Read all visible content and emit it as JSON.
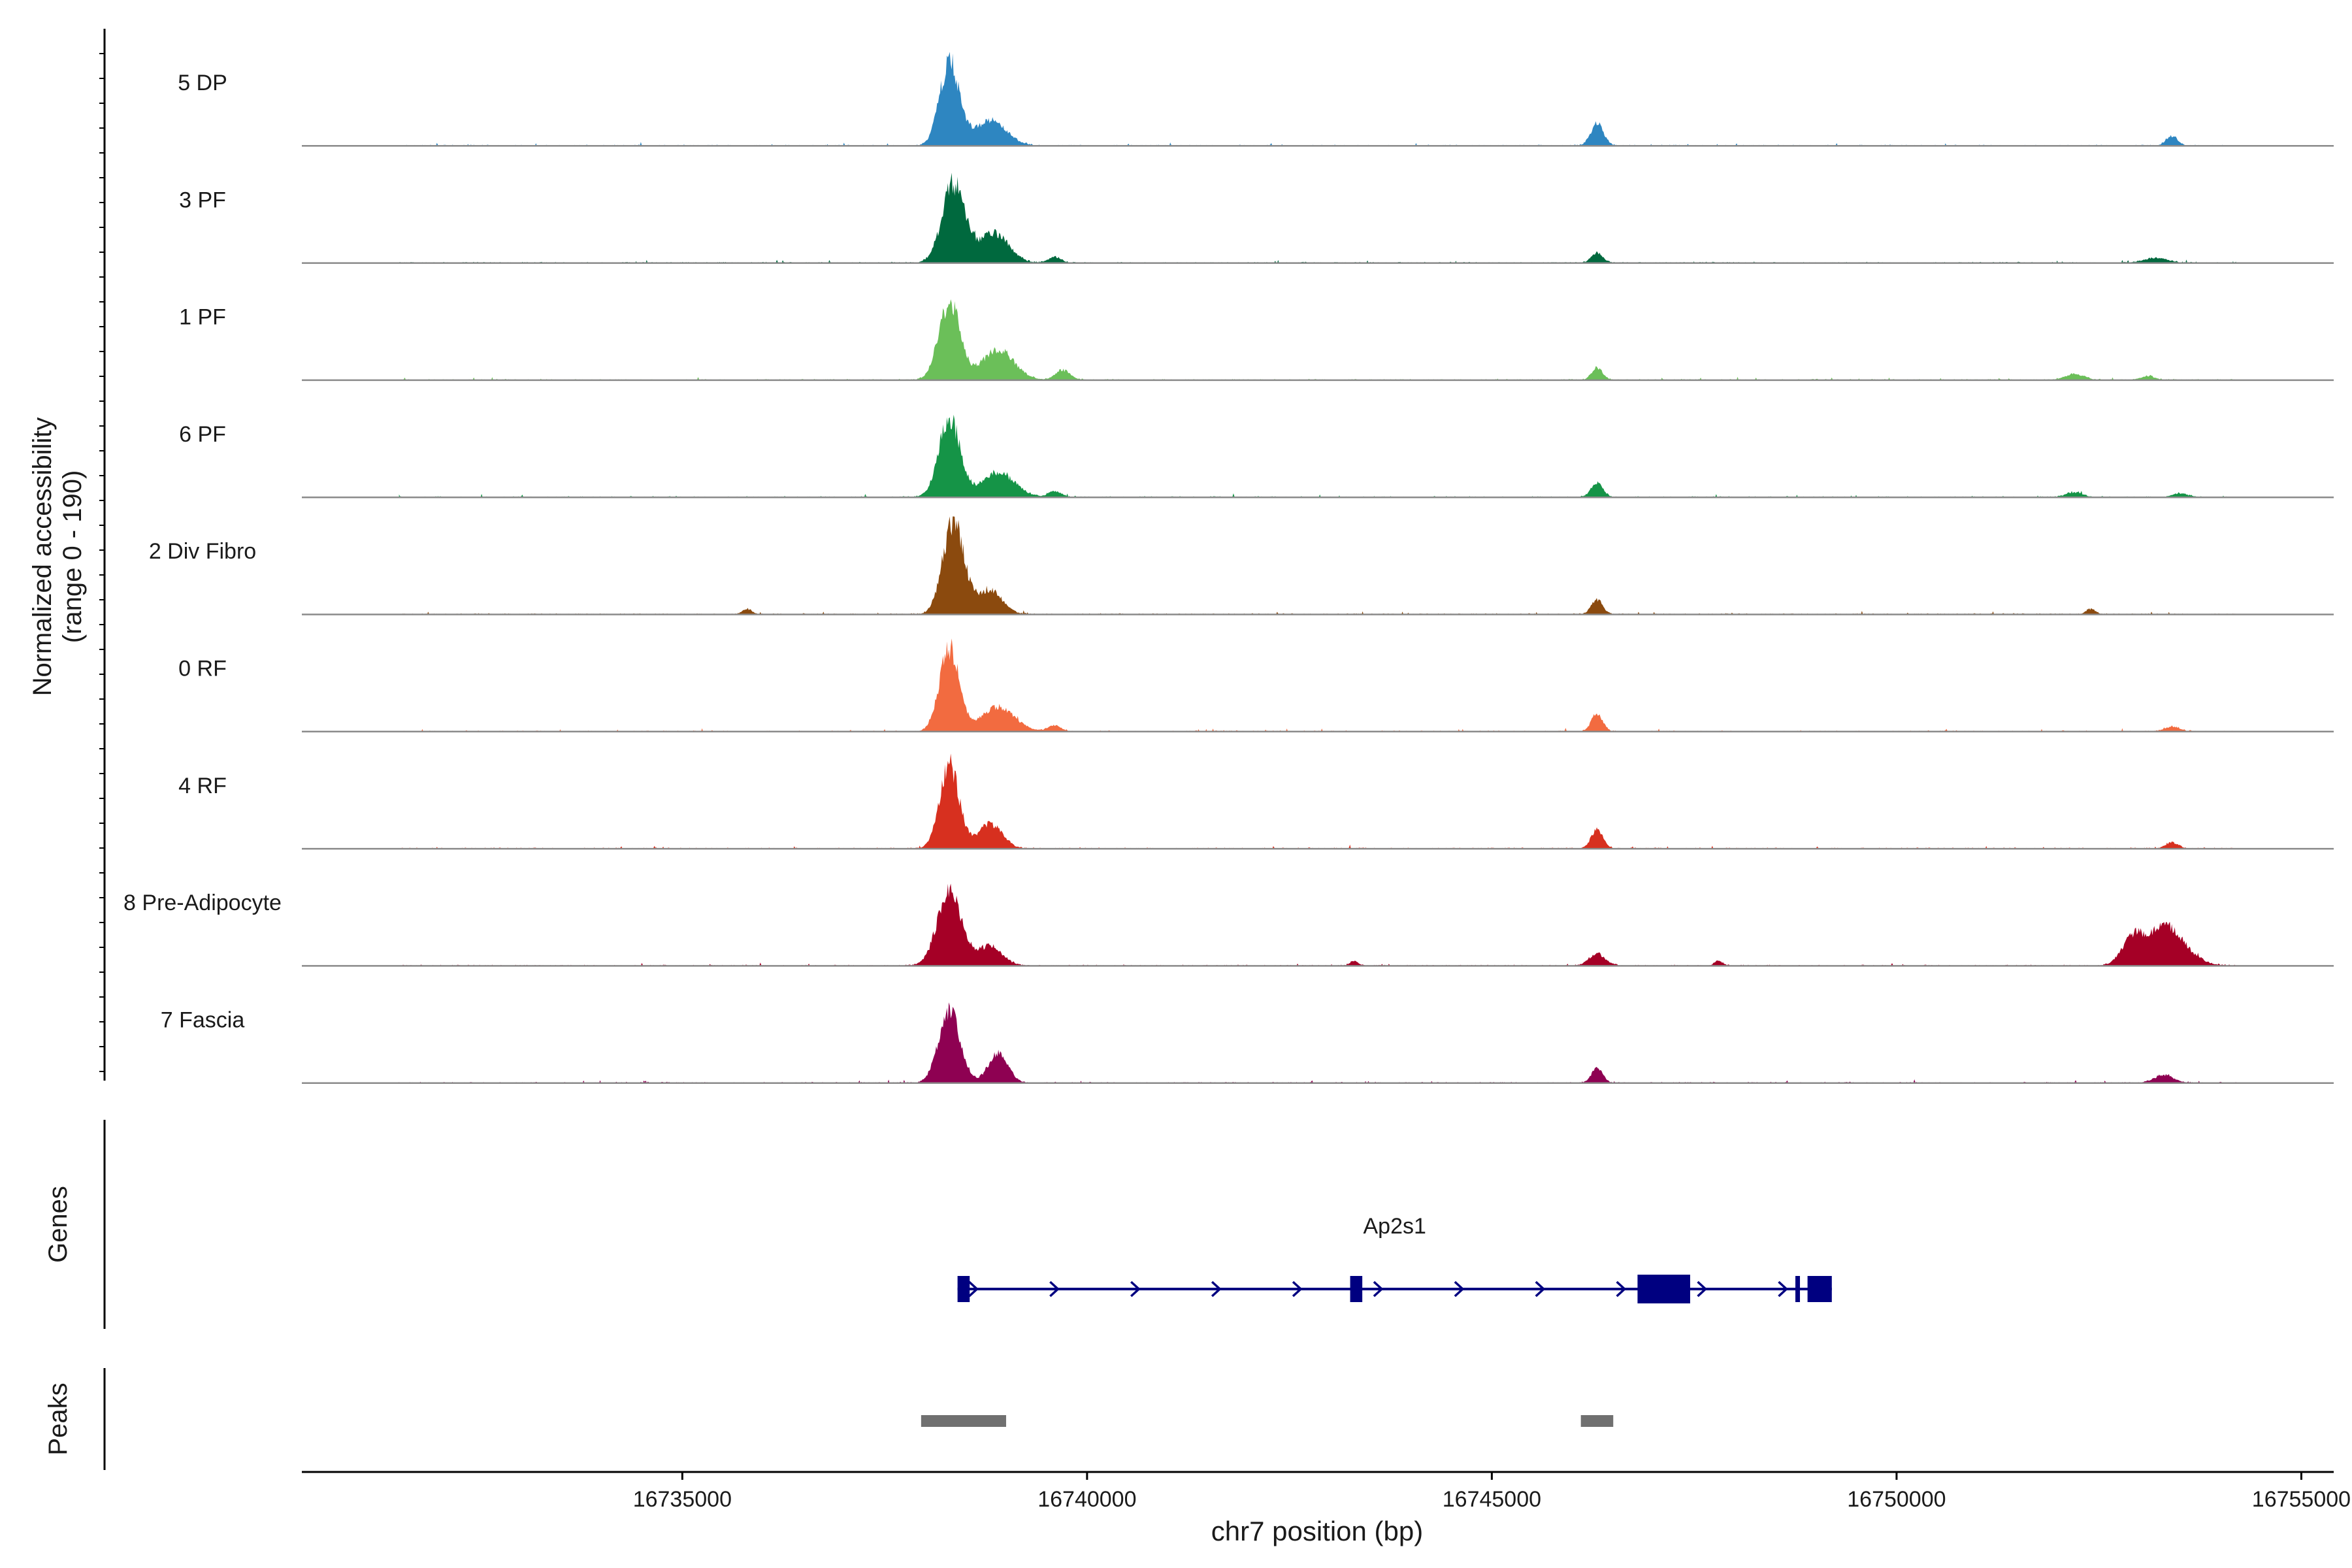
{
  "chart_data": {
    "type": "area",
    "title": "",
    "ylabel_line1": "Normalized accessibility",
    "ylabel_line2": "(range 0 - 190)",
    "y_range": [
      0,
      190
    ],
    "xlabel": "chr7 position (bp)",
    "xlim": [
      16730300,
      16755400
    ],
    "x_ticks": [
      16735000,
      16740000,
      16745000,
      16750000,
      16755000
    ],
    "x_tick_labels": [
      "16735000",
      "16740000",
      "16745000",
      "16750000",
      "16755000"
    ],
    "track_range": [
      16731500,
      16754200
    ],
    "series": [
      {
        "name": "5 DP",
        "color": "#2E86C1",
        "peaks": [
          [
            16738300,
            0.85,
            120
          ],
          [
            16738800,
            0.25,
            200
          ],
          [
            16746300,
            0.22,
            80
          ],
          [
            16753400,
            0.1,
            70
          ]
        ]
      },
      {
        "name": "3 PF",
        "color": "#00693E",
        "peaks": [
          [
            16738350,
            0.8,
            140
          ],
          [
            16738850,
            0.3,
            180
          ],
          [
            16739600,
            0.06,
            80
          ],
          [
            16746300,
            0.1,
            70
          ],
          [
            16753200,
            0.05,
            150
          ]
        ]
      },
      {
        "name": "1 PF",
        "color": "#6BBF59",
        "peaks": [
          [
            16738300,
            0.8,
            130
          ],
          [
            16738900,
            0.3,
            200
          ],
          [
            16739700,
            0.1,
            90
          ],
          [
            16746300,
            0.12,
            70
          ],
          [
            16752200,
            0.06,
            120
          ],
          [
            16753100,
            0.04,
            90
          ]
        ]
      },
      {
        "name": "6 PF",
        "color": "#159447",
        "peaks": [
          [
            16738300,
            0.8,
            130
          ],
          [
            16738900,
            0.25,
            200
          ],
          [
            16739600,
            0.06,
            80
          ],
          [
            16746300,
            0.15,
            70
          ],
          [
            16752200,
            0.05,
            100
          ],
          [
            16753500,
            0.04,
            90
          ]
        ]
      },
      {
        "name": "2 Div Fibro",
        "color": "#8B4A0E",
        "peaks": [
          [
            16738350,
            0.95,
            130
          ],
          [
            16738800,
            0.25,
            150
          ],
          [
            16746300,
            0.15,
            70
          ],
          [
            16735800,
            0.05,
            60
          ],
          [
            16752400,
            0.05,
            60
          ]
        ]
      },
      {
        "name": "0 RF",
        "color": "#F26B40",
        "peaks": [
          [
            16738300,
            0.85,
            120
          ],
          [
            16738900,
            0.25,
            200
          ],
          [
            16739600,
            0.06,
            80
          ],
          [
            16746300,
            0.18,
            70
          ],
          [
            16753400,
            0.05,
            90
          ]
        ]
      },
      {
        "name": "4 RF",
        "color": "#D7301F",
        "peaks": [
          [
            16738300,
            0.85,
            120
          ],
          [
            16738800,
            0.25,
            150
          ],
          [
            16746300,
            0.2,
            70
          ],
          [
            16753400,
            0.06,
            80
          ]
        ]
      },
      {
        "name": "8 Pre-Adipocyte",
        "color": "#A50026",
        "peaks": [
          [
            16738300,
            0.75,
            150
          ],
          [
            16738800,
            0.2,
            150
          ],
          [
            16746300,
            0.12,
            100
          ],
          [
            16753300,
            0.4,
            250
          ],
          [
            16752900,
            0.2,
            120
          ],
          [
            16743300,
            0.05,
            50
          ],
          [
            16747800,
            0.05,
            50
          ]
        ]
      },
      {
        "name": "7 Fascia",
        "color": "#8E0152",
        "peaks": [
          [
            16738300,
            0.75,
            130
          ],
          [
            16738900,
            0.3,
            120
          ],
          [
            16746300,
            0.15,
            70
          ],
          [
            16753300,
            0.08,
            120
          ]
        ]
      }
    ],
    "genes": {
      "label": "Genes",
      "gene_name": "Ap2s1",
      "color": "#000080",
      "strand": "+",
      "start": 16738400,
      "end": 16749200,
      "exons": [
        [
          16738400,
          16738550
        ],
        [
          16743250,
          16743400
        ],
        [
          16746800,
          16747450
        ],
        [
          16748750,
          16748800
        ],
        [
          16748900,
          16749200
        ]
      ]
    },
    "peaks_track": {
      "label": "Peaks",
      "color": "#707070",
      "regions": [
        [
          16737950,
          16739000
        ],
        [
          16746100,
          16746500
        ]
      ]
    }
  }
}
